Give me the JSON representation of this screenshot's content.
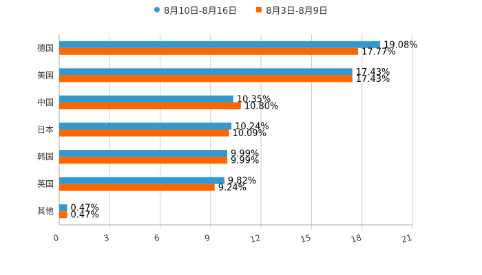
{
  "chart_data": {
    "type": "bar",
    "orientation": "horizontal",
    "categories": [
      "德国",
      "美国",
      "中国",
      "日本",
      "韩国",
      "英国",
      "其他"
    ],
    "series": [
      {
        "name": "8月10日-8月16日",
        "color": "#3399CC",
        "values": [
          19.08,
          17.43,
          10.35,
          10.24,
          9.99,
          9.82,
          0.47
        ],
        "labels": [
          "19.08%",
          "17.43%",
          "10.35%",
          "10.24%",
          "9.99%",
          "9.82%",
          "0.47%"
        ]
      },
      {
        "name": "8月3日-8月9日",
        "color": "#FF6600",
        "values": [
          17.77,
          17.43,
          10.8,
          10.09,
          9.99,
          9.24,
          0.47
        ],
        "labels": [
          "17.77%",
          "17.43%",
          "10.80%",
          "10.09%",
          "9.99%",
          "9.24%",
          "0.47%"
        ]
      }
    ],
    "xlim": [
      0,
      21
    ],
    "xticks": [
      0,
      3,
      6,
      9,
      12,
      15,
      18,
      21
    ],
    "xtick_labels": [
      "0",
      "3",
      "6",
      "9",
      "12",
      "15",
      "18",
      "21"
    ],
    "grid": true,
    "legend_position": "top-center"
  }
}
